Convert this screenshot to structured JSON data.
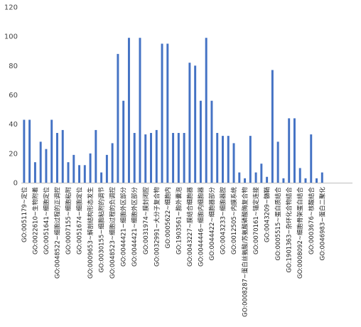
{
  "chart_data": {
    "type": "bar",
    "title": "",
    "xlabel": "",
    "ylabel": "",
    "ylim": [
      0,
      120
    ],
    "yticks": [
      0,
      20,
      40,
      60,
      80,
      100,
      120
    ],
    "grid": false,
    "bar_color": "#4472c4",
    "categories": [
      "GO:0051179~定位",
      "",
      "GO:0022610~生物附着",
      "",
      "GO:0051641~细胞定位",
      "",
      "GO:0048522~细胞过程的正调控",
      "",
      "GO:0007155~细胞粘附",
      "",
      "GO:0051674~细胞定位",
      "",
      "GO:0009653~解剖结构形态发生",
      "",
      "GO:0030155~细胞粘附的调节",
      "",
      "GO:0048523~细胞过程的负调控",
      "",
      "GO:0044421~细胞外区部分",
      "",
      "GO:0044421~细胞外区部分",
      "",
      "GO:0031974~膜封闭腔",
      "",
      "GO:0032991~大分子复合物",
      "",
      "GO:0005622~细胞内",
      "",
      "GO:1903561~胞外囊泡",
      "",
      "GO:0043227~膜结合细胞器",
      "",
      "GO:0044446~细胞内细胞器",
      "",
      "GO:0044422~细胞器部分",
      "",
      "GO:0043233~细胞器腔",
      "",
      "GO:0012505~内膜系统",
      "",
      "GO:0008287~蛋白丝氨酸/苏氨酸磷酸酶复合物",
      "",
      "GO:0070161~锚定连接",
      "",
      "GO:0043209~髓鞘",
      "",
      "GO:0005515~蛋白质结合",
      "",
      "GO:1901363~杂环化合物结合",
      "",
      "GO:0008092~细胞骨架蛋白结合",
      "",
      "GO:0003676~核酸结合",
      "",
      "GO:0046983~蛋白二聚化",
      "",
      "",
      "",
      "",
      ""
    ],
    "values": [
      43,
      43,
      14,
      28,
      23,
      43,
      34,
      36,
      14,
      19,
      12,
      12,
      20,
      36,
      7,
      19,
      27,
      88,
      56,
      99,
      34,
      99,
      33,
      34,
      36,
      95,
      95,
      34,
      34,
      34,
      82,
      80,
      56,
      99,
      56,
      34,
      32,
      32,
      27,
      7,
      3,
      32,
      7,
      13,
      4,
      77,
      28,
      3,
      44,
      44,
      10,
      3,
      33,
      3,
      7,
      0,
      0,
      0,
      0,
      0
    ]
  }
}
